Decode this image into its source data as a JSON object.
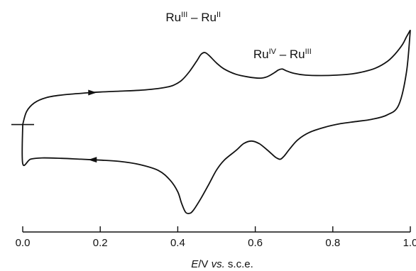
{
  "chart_data": {
    "type": "line",
    "title": "",
    "xlabel": {
      "var": "E",
      "sep": "/",
      "unit": "V",
      "ref": "vs.",
      "tail": "s.c.e."
    },
    "ylabel": "",
    "xlim": [
      0.0,
      1.0
    ],
    "x_ticks": [
      "0.0",
      "0.2",
      "0.4",
      "0.6",
      "0.8",
      "1.0"
    ],
    "grid": false,
    "legend": "none",
    "annotations": [
      {
        "text_a": "Ru",
        "sup_a": "III",
        "dash": "–",
        "text_b": "Ru",
        "sup_b": "II",
        "x": 0.44
      },
      {
        "text_a": "Ru",
        "sup_a": "IV",
        "dash": "–",
        "text_b": "Ru",
        "sup_b": "III",
        "x": 0.67
      }
    ],
    "series": [
      {
        "direction": "anodic",
        "x": [
          0.0,
          0.01,
          0.03,
          0.06,
          0.1,
          0.15,
          0.2,
          0.25,
          0.3,
          0.34,
          0.37,
          0.39,
          0.41,
          0.43,
          0.45,
          0.46,
          0.47,
          0.48,
          0.5,
          0.52,
          0.55,
          0.58,
          0.61,
          0.63,
          0.65,
          0.66,
          0.67,
          0.68,
          0.7,
          0.73,
          0.77,
          0.81,
          0.85,
          0.88,
          0.91,
          0.94,
          0.96,
          0.98,
          0.99,
          1.0
        ],
        "y": [
          0.0,
          0.3,
          0.5,
          0.62,
          0.68,
          0.72,
          0.75,
          0.77,
          0.79,
          0.82,
          0.86,
          0.91,
          1.02,
          1.22,
          1.48,
          1.62,
          1.66,
          1.6,
          1.42,
          1.28,
          1.16,
          1.1,
          1.07,
          1.1,
          1.2,
          1.26,
          1.28,
          1.24,
          1.18,
          1.14,
          1.13,
          1.14,
          1.17,
          1.22,
          1.3,
          1.45,
          1.62,
          1.85,
          2.02,
          2.18
        ]
      },
      {
        "direction": "cathodic",
        "x": [
          1.0,
          0.99,
          0.97,
          0.94,
          0.9,
          0.86,
          0.82,
          0.78,
          0.74,
          0.71,
          0.69,
          0.675,
          0.665,
          0.655,
          0.645,
          0.63,
          0.61,
          0.59,
          0.57,
          0.55,
          0.52,
          0.5,
          0.48,
          0.46,
          0.44,
          0.43,
          0.42,
          0.41,
          0.4,
          0.38,
          0.35,
          0.3,
          0.25,
          0.2,
          0.15,
          0.1,
          0.05,
          0.02,
          0.0,
          0.0
        ],
        "y": [
          2.18,
          1.2,
          0.45,
          0.22,
          0.12,
          0.07,
          0.02,
          -0.06,
          -0.18,
          -0.35,
          -0.55,
          -0.72,
          -0.8,
          -0.77,
          -0.7,
          -0.58,
          -0.44,
          -0.38,
          -0.44,
          -0.6,
          -0.82,
          -1.05,
          -1.38,
          -1.7,
          -1.98,
          -2.05,
          -2.02,
          -1.82,
          -1.55,
          -1.28,
          -1.06,
          -0.92,
          -0.85,
          -0.82,
          -0.8,
          -0.78,
          -0.77,
          -0.8,
          -0.9,
          0.0
        ]
      }
    ],
    "ylim": [
      -2.2,
      2.3
    ],
    "arrows": [
      {
        "series": 0,
        "x": 0.18
      },
      {
        "series": 1,
        "x": 0.18
      }
    ]
  }
}
